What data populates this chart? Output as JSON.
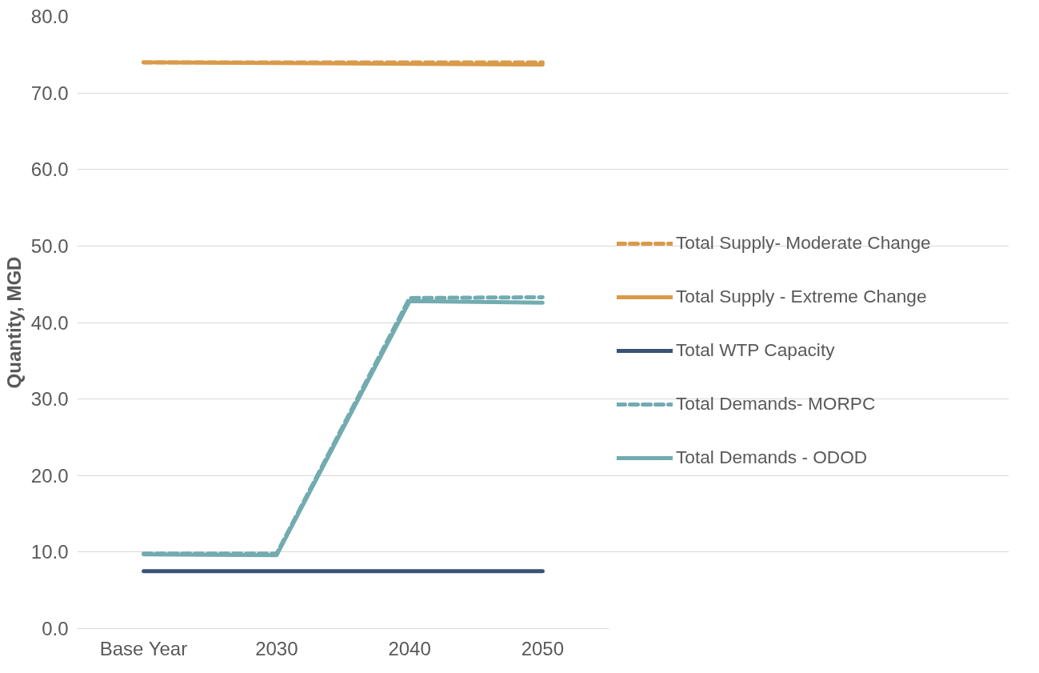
{
  "chart_data": {
    "type": "line",
    "ylabel": "Quantity, MGD",
    "categories": [
      "Base Year",
      "2030",
      "2040",
      "2050"
    ],
    "series": [
      {
        "name": "Total Supply- Moderate Change",
        "color": "#d99a4a",
        "line_style": "dashed",
        "values": [
          74.0,
          74.0,
          74.0,
          74.0
        ]
      },
      {
        "name": "Total Supply - Extreme Change",
        "color": "#d99a4a",
        "line_style": "solid",
        "values": [
          74.0,
          73.9,
          73.8,
          73.7
        ]
      },
      {
        "name": "Total WTP Capacity",
        "color": "#3a5274",
        "line_style": "solid",
        "values": [
          7.5,
          7.5,
          7.5,
          7.5
        ]
      },
      {
        "name": "Total Demands- MORPC",
        "color": "#72abb0",
        "line_style": "dashed",
        "values": [
          9.8,
          9.8,
          43.2,
          43.3
        ]
      },
      {
        "name": "Total Demands - ODOD",
        "color": "#72abb0",
        "line_style": "solid",
        "values": [
          9.7,
          9.6,
          42.8,
          42.6
        ]
      }
    ],
    "ylim": [
      0,
      80
    ],
    "yticks": [
      {
        "value": 0,
        "label": "0.0"
      },
      {
        "value": 10,
        "label": "10.0"
      },
      {
        "value": 20,
        "label": "20.0"
      },
      {
        "value": 30,
        "label": "30.0"
      },
      {
        "value": 40,
        "label": "40.0"
      },
      {
        "value": 50,
        "label": "50.0"
      },
      {
        "value": 60,
        "label": "60.0"
      },
      {
        "value": 70,
        "label": "70.0"
      },
      {
        "value": 80,
        "label": "80.0"
      }
    ],
    "grid": "y",
    "legend": "right",
    "marker": "none"
  }
}
